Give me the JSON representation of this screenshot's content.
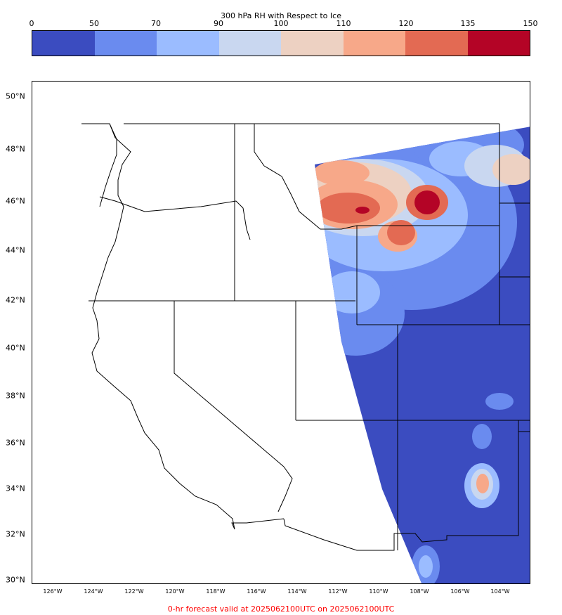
{
  "colorbar": {
    "title": "300 hPa RH with Respect to Ice",
    "ticks": [
      "0",
      "50",
      "70",
      "90",
      "100",
      "110",
      "120",
      "135",
      "150"
    ],
    "colors": [
      "#3b4cc0",
      "#6a8bef",
      "#9bbcff",
      "#c9d7f0",
      "#edd1c2",
      "#f7a889",
      "#e36a53",
      "#b40426"
    ]
  },
  "map": {
    "lat_labels": [
      "50°N",
      "48°N",
      "46°N",
      "44°N",
      "42°N",
      "40°N",
      "38°N",
      "36°N",
      "34°N",
      "32°N",
      "30°N"
    ],
    "lon_labels": [
      "126°W",
      "124°W",
      "122°W",
      "120°W",
      "118°W",
      "116°W",
      "114°W",
      "112°W",
      "110°W",
      "108°W",
      "106°W",
      "104°W"
    ]
  },
  "footer": {
    "text": "0-hr forecast valid at 2025062100UTC on 2025062100UTC"
  }
}
